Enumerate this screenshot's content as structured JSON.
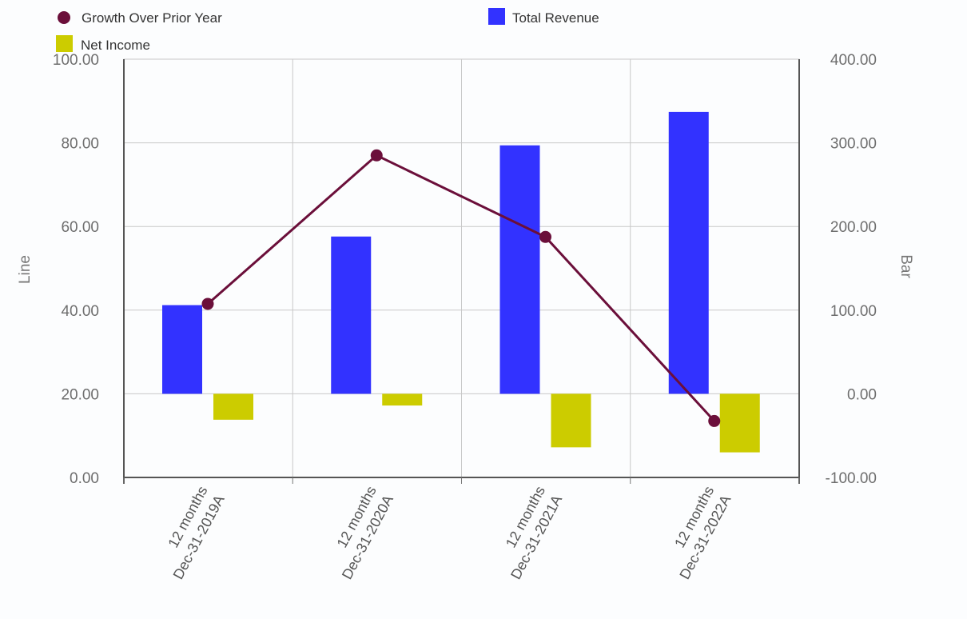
{
  "chart_data": {
    "type": "bar",
    "categories": [
      [
        "12 months",
        "Dec-31-2019A"
      ],
      [
        "12 months",
        "Dec-31-2020A"
      ],
      [
        "12 months",
        "Dec-31-2021A"
      ],
      [
        "12 months",
        "Dec-31-2022A"
      ]
    ],
    "series": [
      {
        "name": "Growth Over Prior Year",
        "type": "line",
        "axis": "left",
        "color": "#6b0f3a",
        "values": [
          41.5,
          77.0,
          57.5,
          13.5
        ]
      },
      {
        "name": "Total Revenue",
        "type": "bar",
        "axis": "right",
        "color": "#3232ff",
        "values": [
          106,
          188,
          297,
          337
        ]
      },
      {
        "name": "Net Income",
        "type": "bar",
        "axis": "right",
        "color": "#cccc00",
        "values": [
          -31,
          -14,
          -64,
          -70
        ]
      }
    ],
    "left_axis": {
      "label": "Line",
      "range": [
        0,
        100
      ],
      "ticks": [
        "0.00",
        "20.00",
        "40.00",
        "60.00",
        "80.00",
        "100.00"
      ]
    },
    "right_axis": {
      "label": "Bar",
      "range": [
        -100,
        400
      ],
      "ticks": [
        "-100.00",
        "0.00",
        "100.00",
        "200.00",
        "300.00",
        "400.00"
      ]
    },
    "grid": true,
    "legend": "top"
  }
}
